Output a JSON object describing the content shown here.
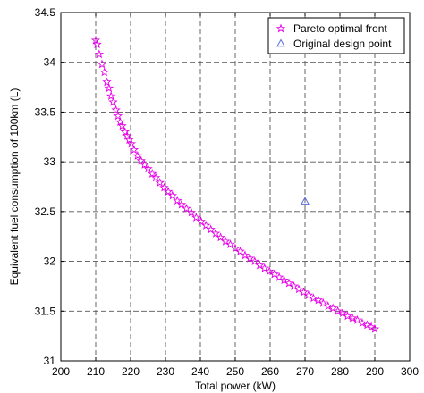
{
  "chart_data": {
    "type": "scatter",
    "xlabel": "Total power (kW)",
    "ylabel": "Equivalent fuel consumption of 100km (L)",
    "xlim": [
      200,
      300
    ],
    "ylim": [
      31,
      34.5
    ],
    "xticks": [
      200,
      210,
      220,
      230,
      240,
      250,
      260,
      270,
      280,
      290,
      300
    ],
    "yticks": [
      31,
      31.5,
      32,
      32.5,
      33,
      33.5,
      34,
      34.5
    ],
    "xtick_labels": [
      "200",
      "210",
      "220",
      "230",
      "240",
      "250",
      "260",
      "270",
      "280",
      "290",
      "300"
    ],
    "ytick_labels": [
      "31",
      "31.5",
      "32",
      "32.5",
      "33",
      "33.5",
      "34",
      "34.5"
    ],
    "grid": true,
    "legend_position": "top-right",
    "series": [
      {
        "name": "Pareto optimal front",
        "marker": "star",
        "color": "#e600e6",
        "points": [
          [
            210.0,
            34.22
          ],
          [
            210.4,
            34.18
          ],
          [
            211.0,
            34.08
          ],
          [
            211.8,
            33.98
          ],
          [
            212.5,
            33.9
          ],
          [
            213.2,
            33.8
          ],
          [
            213.8,
            33.74
          ],
          [
            214.4,
            33.66
          ],
          [
            215.0,
            33.6
          ],
          [
            215.8,
            33.52
          ],
          [
            216.4,
            33.46
          ],
          [
            217.0,
            33.4
          ],
          [
            217.6,
            33.36
          ],
          [
            218.4,
            33.3
          ],
          [
            219.0,
            33.26
          ],
          [
            219.6,
            33.22
          ],
          [
            220.2,
            33.18
          ],
          [
            221.0,
            33.12
          ],
          [
            222.0,
            33.06
          ],
          [
            223.0,
            33.01
          ],
          [
            224.0,
            32.97
          ],
          [
            225.0,
            32.93
          ],
          [
            226.2,
            32.88
          ],
          [
            227.2,
            32.84
          ],
          [
            228.4,
            32.79
          ],
          [
            229.6,
            32.74
          ],
          [
            230.8,
            32.7
          ],
          [
            232.0,
            32.66
          ],
          [
            233.4,
            32.61
          ],
          [
            234.6,
            32.57
          ],
          [
            236.0,
            32.53
          ],
          [
            237.4,
            32.49
          ],
          [
            238.8,
            32.44
          ],
          [
            240.2,
            32.4
          ],
          [
            241.6,
            32.36
          ],
          [
            243.0,
            32.32
          ],
          [
            244.4,
            32.28
          ],
          [
            245.8,
            32.24
          ],
          [
            247.2,
            32.2
          ],
          [
            248.6,
            32.17
          ],
          [
            250.0,
            32.13
          ],
          [
            251.4,
            32.1
          ],
          [
            252.8,
            32.06
          ],
          [
            254.2,
            32.03
          ],
          [
            255.6,
            32.0
          ],
          [
            257.0,
            31.96
          ],
          [
            258.4,
            31.93
          ],
          [
            259.8,
            31.9
          ],
          [
            261.2,
            31.87
          ],
          [
            262.6,
            31.84
          ],
          [
            264.0,
            31.81
          ],
          [
            265.4,
            31.78
          ],
          [
            266.8,
            31.75
          ],
          [
            268.2,
            31.72
          ],
          [
            269.6,
            31.69
          ],
          [
            271.0,
            31.66
          ],
          [
            272.4,
            31.63
          ],
          [
            273.8,
            31.61
          ],
          [
            275.2,
            31.58
          ],
          [
            276.6,
            31.55
          ],
          [
            278.0,
            31.53
          ],
          [
            279.4,
            31.5
          ],
          [
            280.8,
            31.48
          ],
          [
            282.2,
            31.45
          ],
          [
            283.6,
            31.43
          ],
          [
            285.0,
            31.41
          ],
          [
            286.4,
            31.38
          ],
          [
            287.8,
            31.36
          ],
          [
            289.0,
            31.34
          ],
          [
            290.0,
            31.32
          ]
        ]
      },
      {
        "name": "Original design point",
        "marker": "triangle",
        "color": "#5b6ee1",
        "points": [
          [
            270,
            32.6
          ]
        ]
      }
    ]
  }
}
